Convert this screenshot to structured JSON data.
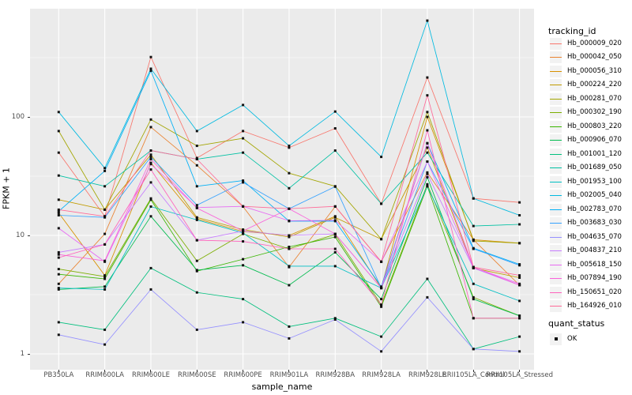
{
  "chart_data": {
    "type": "line",
    "title": "",
    "xlabel": "sample_name",
    "ylabel": "FPKM + 1",
    "y_scale": "log10",
    "grid": true,
    "legend_position": "right",
    "panel_background": "#EBEBEB",
    "grid_color": "#FFFFFF",
    "point_shape": "filled-square",
    "point_color": "#111111",
    "y_ticks": [
      1,
      10,
      100
    ],
    "y_minor_ticks": [
      3.162,
      31.62,
      316.2
    ],
    "ylim": [
      0.9,
      830
    ],
    "categories": [
      "PB350LA",
      "RRIM600LA",
      "RRIM600LE",
      "RRIM600SE",
      "RRIM600PE",
      "RRIM901LA",
      "RRIM928BA",
      "RRIM928LA",
      "RRIM928LE",
      "RRII105LA_Control",
      "RRII105LA_Stressed"
    ],
    "series": [
      {
        "name": "Hb_000009_020",
        "color": "#F8766D",
        "values": [
          50,
          14.5,
          320,
          45,
          76,
          55,
          80,
          18.5,
          215,
          20.5,
          19
        ]
      },
      {
        "name": "Hb_000042_050",
        "color": "#EA8331",
        "values": [
          3.9,
          10.3,
          82,
          39,
          17.5,
          5.4,
          17.5,
          6.0,
          34,
          9.2,
          3.8
        ]
      },
      {
        "name": "Hb_000056_310",
        "color": "#D89000",
        "values": [
          15.5,
          4.6,
          41,
          13.8,
          10.8,
          10.0,
          14.5,
          3.6,
          100,
          9.2,
          8.6
        ]
      },
      {
        "name": "Hb_000224_220",
        "color": "#C09B00",
        "values": [
          20,
          16.5,
          48,
          14.2,
          11.2,
          9.7,
          14.2,
          9.3,
          55,
          5.3,
          4.4
        ]
      },
      {
        "name": "Hb_000281_070",
        "color": "#A3A500",
        "values": [
          76,
          16.5,
          95,
          57,
          66,
          33.5,
          26,
          9.3,
          110,
          9.0,
          8.6
        ]
      },
      {
        "name": "Hb_000302_190",
        "color": "#7CAE00",
        "values": [
          5.2,
          4.5,
          20.5,
          6.1,
          10.3,
          7.7,
          10.2,
          2.6,
          27,
          3.0,
          2.1
        ]
      },
      {
        "name": "Hb_000803_220",
        "color": "#39B600",
        "values": [
          4.7,
          4.3,
          20,
          5.0,
          6.3,
          8.0,
          9.7,
          2.5,
          26,
          2.0,
          2.0
        ]
      },
      {
        "name": "Hb_000906_070",
        "color": "#00BB4E",
        "values": [
          3.5,
          3.7,
          14.5,
          5.1,
          5.6,
          3.8,
          7.2,
          2.9,
          31,
          2.9,
          2.1
        ]
      },
      {
        "name": "Hb_001001_120",
        "color": "#00BF7D",
        "values": [
          1.85,
          1.6,
          5.3,
          3.3,
          2.9,
          1.7,
          2.0,
          1.4,
          4.3,
          1.1,
          1.4
        ]
      },
      {
        "name": "Hb_001689_050",
        "color": "#00C1A3",
        "values": [
          32,
          26,
          52,
          44,
          50,
          25,
          52,
          18.5,
          50,
          12,
          12.4
        ]
      },
      {
        "name": "Hb_001953_100",
        "color": "#00BFC4",
        "values": [
          3.6,
          3.5,
          17.5,
          13.5,
          10.5,
          5.5,
          5.5,
          3.6,
          26,
          3.9,
          2.8
        ]
      },
      {
        "name": "Hb_002005_040",
        "color": "#00BAE0",
        "values": [
          110,
          37,
          255,
          76,
          126,
          57,
          111,
          46,
          650,
          20.5,
          14.8
        ]
      },
      {
        "name": "Hb_002783_070",
        "color": "#00B0F6",
        "values": [
          16,
          35,
          245,
          26,
          29,
          13.2,
          13.2,
          3.7,
          60,
          7.8,
          5.7
        ]
      },
      {
        "name": "Hb_003683_030",
        "color": "#35A2FF",
        "values": [
          14.8,
          14.2,
          46,
          18,
          28,
          16.8,
          25.8,
          3.6,
          42,
          7.7,
          5.6
        ]
      },
      {
        "name": "Hb_004635_070",
        "color": "#9590FF",
        "values": [
          1.45,
          1.2,
          3.5,
          1.6,
          1.85,
          1.35,
          1.95,
          1.05,
          3.0,
          1.1,
          1.05
        ]
      },
      {
        "name": "Hb_004837_210",
        "color": "#C77CFF",
        "values": [
          7.2,
          8.4,
          28,
          9.1,
          10.9,
          10.0,
          10.3,
          3.6,
          33,
          5.3,
          3.8
        ]
      },
      {
        "name": "Hb_005618_150",
        "color": "#E76BF3",
        "values": [
          11.5,
          6.0,
          40,
          17.2,
          17.6,
          13.3,
          13.4,
          6.0,
          42,
          5.4,
          3.9
        ]
      },
      {
        "name": "Hb_007894_190",
        "color": "#FA62DB",
        "values": [
          6.9,
          6.1,
          44,
          17.0,
          10.9,
          16.8,
          10.3,
          3.6,
          60,
          5.4,
          3.8
        ]
      },
      {
        "name": "Hb_150651_020",
        "color": "#FF62BC",
        "values": [
          6.5,
          8.4,
          36,
          9.1,
          8.9,
          7.7,
          7.7,
          2.6,
          77,
          2.0,
          2.0
        ]
      },
      {
        "name": "Hb_164926_010",
        "color": "#FF6A98",
        "values": [
          16.5,
          14.5,
          52,
          44,
          17.6,
          16.8,
          17.6,
          6.0,
          152,
          5.4,
          4.6
        ]
      }
    ]
  },
  "legend": {
    "tracking_title": "tracking_id",
    "quant_title": "quant_status",
    "quant_items": [
      {
        "label": "OK"
      }
    ]
  }
}
